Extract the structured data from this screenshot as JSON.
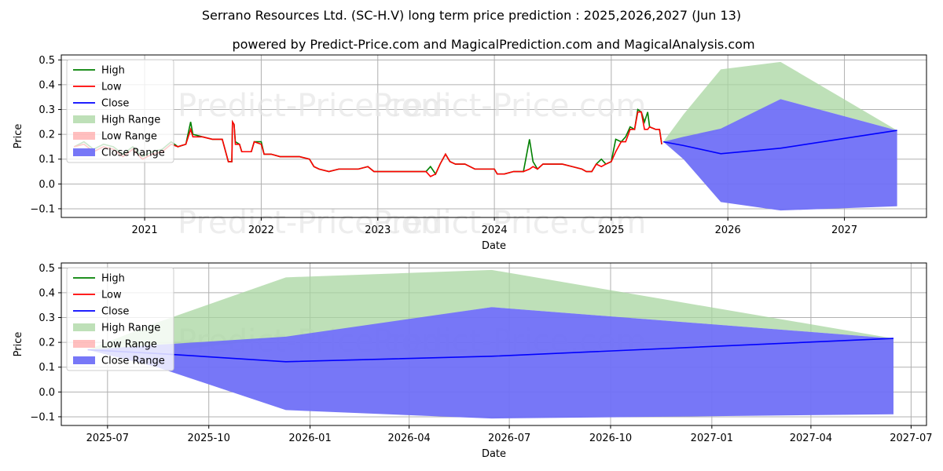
{
  "title": "Serrano Resources Ltd. (SC-H.V) long term price prediction : 2025,2026,2027 (Jun 13)",
  "subtitle": "powered by Predict-Price.com and MagicalPrediction.com and MagicalAnalysis.com",
  "watermark": "Predict-Price.com",
  "colors": {
    "high": "#008000",
    "low": "#ff0000",
    "close": "#0000ff",
    "high_range": "#a8d5a0",
    "low_range": "#ffaaaa",
    "close_range": "#7070f7"
  },
  "legend": [
    {
      "kind": "line",
      "key": "high",
      "label": "High"
    },
    {
      "kind": "line",
      "key": "low",
      "label": "Low"
    },
    {
      "kind": "line",
      "key": "close",
      "label": "Close"
    },
    {
      "kind": "patch",
      "key": "high_range",
      "label": "High Range"
    },
    {
      "kind": "patch",
      "key": "low_range",
      "label": "Low Range"
    },
    {
      "kind": "patch",
      "key": "close_range",
      "label": "Close Range"
    }
  ],
  "chart_data": [
    {
      "type": "line",
      "xlabel": "Date",
      "ylabel": "Price",
      "xlim": [
        "2020-04-15",
        "2027-09-15"
      ],
      "ylim": [
        -0.135,
        0.52
      ],
      "xticks": [
        {
          "date": "2021-01-01",
          "label": "2021"
        },
        {
          "date": "2022-01-01",
          "label": "2022"
        },
        {
          "date": "2023-01-01",
          "label": "2023"
        },
        {
          "date": "2024-01-01",
          "label": "2024"
        },
        {
          "date": "2025-01-01",
          "label": "2025"
        },
        {
          "date": "2026-01-01",
          "label": "2026"
        },
        {
          "date": "2027-01-01",
          "label": "2027"
        }
      ],
      "yticks": [
        -0.1,
        0.0,
        0.1,
        0.2,
        0.3,
        0.4,
        0.5
      ],
      "ytick_labels": [
        "−0.1",
        "0.0",
        "0.1",
        "0.2",
        "0.3",
        "0.4",
        "0.5"
      ],
      "legend_position": "upper-left",
      "grid": true,
      "history": [
        [
          "2020-05-25",
          0.15,
          0.15
        ],
        [
          "2020-06-25",
          0.17,
          0.16
        ],
        [
          "2020-07-25",
          0.14,
          0.13
        ],
        [
          "2020-08-25",
          0.16,
          0.15
        ],
        [
          "2020-09-25",
          0.15,
          0.14
        ],
        [
          "2020-10-25",
          0.12,
          0.11
        ],
        [
          "2020-11-25",
          0.15,
          0.14
        ],
        [
          "2020-12-25",
          0.11,
          0.1
        ],
        [
          "2021-01-25",
          0.13,
          0.12
        ],
        [
          "2021-02-25",
          0.14,
          0.13
        ],
        [
          "2021-03-25",
          0.17,
          0.16
        ],
        [
          "2021-04-15",
          0.15,
          0.15
        ],
        [
          "2021-05-10",
          0.16,
          0.16
        ],
        [
          "2021-05-25",
          0.25,
          0.22
        ],
        [
          "2021-06-01",
          0.2,
          0.19
        ],
        [
          "2021-07-01",
          0.19,
          0.19
        ],
        [
          "2021-08-01",
          0.18,
          0.18
        ],
        [
          "2021-09-01",
          0.18,
          0.18
        ],
        [
          "2021-09-20",
          0.09,
          0.09
        ],
        [
          "2021-10-01",
          0.09,
          0.09
        ],
        [
          "2021-10-03",
          0.25,
          0.25
        ],
        [
          "2021-10-08",
          0.24,
          0.24
        ],
        [
          "2021-10-12",
          0.17,
          0.16
        ],
        [
          "2021-10-25",
          0.16,
          0.16
        ],
        [
          "2021-11-01",
          0.13,
          0.13
        ],
        [
          "2021-12-01",
          0.13,
          0.13
        ],
        [
          "2021-12-10",
          0.17,
          0.17
        ],
        [
          "2022-01-01",
          0.17,
          0.16
        ],
        [
          "2022-01-10",
          0.12,
          0.12
        ],
        [
          "2022-02-01",
          0.12,
          0.12
        ],
        [
          "2022-03-01",
          0.11,
          0.11
        ],
        [
          "2022-04-01",
          0.11,
          0.11
        ],
        [
          "2022-05-01",
          0.11,
          0.11
        ],
        [
          "2022-06-01",
          0.1,
          0.1
        ],
        [
          "2022-06-15",
          0.07,
          0.07
        ],
        [
          "2022-07-01",
          0.06,
          0.06
        ],
        [
          "2022-08-01",
          0.05,
          0.05
        ],
        [
          "2022-09-01",
          0.06,
          0.06
        ],
        [
          "2022-10-01",
          0.06,
          0.06
        ],
        [
          "2022-11-01",
          0.06,
          0.06
        ],
        [
          "2022-12-01",
          0.07,
          0.07
        ],
        [
          "2022-12-20",
          0.05,
          0.05
        ],
        [
          "2023-02-01",
          0.05,
          0.05
        ],
        [
          "2023-04-01",
          0.05,
          0.05
        ],
        [
          "2023-05-01",
          0.05,
          0.05
        ],
        [
          "2023-06-01",
          0.05,
          0.05
        ],
        [
          "2023-06-15",
          0.07,
          0.03
        ],
        [
          "2023-07-01",
          0.04,
          0.04
        ],
        [
          "2023-07-15",
          0.08,
          0.08
        ],
        [
          "2023-08-01",
          0.12,
          0.12
        ],
        [
          "2023-08-15",
          0.09,
          0.09
        ],
        [
          "2023-09-01",
          0.08,
          0.08
        ],
        [
          "2023-10-01",
          0.08,
          0.08
        ],
        [
          "2023-11-01",
          0.06,
          0.06
        ],
        [
          "2023-12-01",
          0.06,
          0.06
        ],
        [
          "2024-01-01",
          0.06,
          0.06
        ],
        [
          "2024-01-10",
          0.04,
          0.04
        ],
        [
          "2024-02-01",
          0.04,
          0.04
        ],
        [
          "2024-03-01",
          0.05,
          0.05
        ],
        [
          "2024-04-01",
          0.05,
          0.05
        ],
        [
          "2024-04-20",
          0.18,
          0.06
        ],
        [
          "2024-05-01",
          0.09,
          0.07
        ],
        [
          "2024-05-15",
          0.06,
          0.06
        ],
        [
          "2024-06-01",
          0.08,
          0.08
        ],
        [
          "2024-07-01",
          0.08,
          0.08
        ],
        [
          "2024-08-01",
          0.08,
          0.08
        ],
        [
          "2024-09-01",
          0.07,
          0.07
        ],
        [
          "2024-10-01",
          0.06,
          0.06
        ],
        [
          "2024-10-15",
          0.05,
          0.05
        ],
        [
          "2024-11-01",
          0.05,
          0.05
        ],
        [
          "2024-11-15",
          0.08,
          0.08
        ],
        [
          "2024-12-01",
          0.1,
          0.07
        ],
        [
          "2024-12-15",
          0.08,
          0.08
        ],
        [
          "2025-01-01",
          0.09,
          0.09
        ],
        [
          "2025-01-15",
          0.18,
          0.13
        ],
        [
          "2025-02-01",
          0.17,
          0.17
        ],
        [
          "2025-02-15",
          0.19,
          0.17
        ],
        [
          "2025-03-01",
          0.23,
          0.22
        ],
        [
          "2025-03-15",
          0.22,
          0.22
        ],
        [
          "2025-03-25",
          0.3,
          0.29
        ],
        [
          "2025-04-05",
          0.29,
          0.29
        ],
        [
          "2025-04-15",
          0.25,
          0.22
        ],
        [
          "2025-04-25",
          0.29,
          0.22
        ],
        [
          "2025-05-01",
          0.23,
          0.23
        ],
        [
          "2025-05-20",
          0.22,
          0.22
        ],
        [
          "2025-06-01",
          0.22,
          0.22
        ],
        [
          "2025-06-08",
          0.16,
          0.16
        ]
      ],
      "forecast": [
        {
          "date": "2025-06-13",
          "close": 0.17,
          "high_range": [
            0.17,
            0.17
          ],
          "close_range": [
            0.17,
            0.17
          ]
        },
        {
          "date": "2025-08-15",
          "close": 0.155,
          "high_range": [
            0.16,
            0.28
          ],
          "close_range": [
            0.1,
            0.19
          ]
        },
        {
          "date": "2025-12-10",
          "close": 0.122,
          "high_range": [
            0.22,
            0.462
          ],
          "close_range": [
            -0.073,
            0.223
          ]
        },
        {
          "date": "2026-06-15",
          "close": 0.144,
          "high_range": [
            0.342,
            0.492
          ],
          "close_range": [
            -0.107,
            0.342
          ]
        },
        {
          "date": "2027-06-15",
          "close": 0.216,
          "high_range": [
            0.216,
            0.216
          ],
          "close_range": [
            -0.09,
            0.216
          ]
        }
      ]
    },
    {
      "type": "line",
      "xlabel": "Date",
      "ylabel": "Price",
      "xlim": [
        "2025-05-20",
        "2027-07-15"
      ],
      "ylim": [
        -0.135,
        0.52
      ],
      "xticks": [
        {
          "date": "2025-07-01",
          "label": "2025-07"
        },
        {
          "date": "2025-10-01",
          "label": "2025-10"
        },
        {
          "date": "2026-01-01",
          "label": "2026-01"
        },
        {
          "date": "2026-04-01",
          "label": "2026-04"
        },
        {
          "date": "2026-07-01",
          "label": "2026-07"
        },
        {
          "date": "2026-10-01",
          "label": "2026-10"
        },
        {
          "date": "2027-01-01",
          "label": "2027-01"
        },
        {
          "date": "2027-04-01",
          "label": "2027-04"
        },
        {
          "date": "2027-07-01",
          "label": "2027-07"
        }
      ],
      "yticks": [
        -0.1,
        0.0,
        0.1,
        0.2,
        0.3,
        0.4,
        0.5
      ],
      "ytick_labels": [
        "−0.1",
        "0.0",
        "0.1",
        "0.2",
        "0.3",
        "0.4",
        "0.5"
      ],
      "legend_position": "upper-left",
      "grid": true,
      "history": [],
      "forecast": [
        {
          "date": "2025-06-13",
          "close": 0.17,
          "high_range": [
            0.17,
            0.17
          ],
          "close_range": [
            0.17,
            0.17
          ]
        },
        {
          "date": "2025-08-15",
          "close": 0.155,
          "high_range": [
            0.16,
            0.28
          ],
          "close_range": [
            0.1,
            0.19
          ]
        },
        {
          "date": "2025-12-10",
          "close": 0.122,
          "high_range": [
            0.22,
            0.462
          ],
          "close_range": [
            -0.073,
            0.223
          ]
        },
        {
          "date": "2026-06-15",
          "close": 0.144,
          "high_range": [
            0.342,
            0.492
          ],
          "close_range": [
            -0.107,
            0.342
          ]
        },
        {
          "date": "2027-06-15",
          "close": 0.216,
          "high_range": [
            0.216,
            0.216
          ],
          "close_range": [
            -0.09,
            0.216
          ]
        }
      ]
    }
  ]
}
